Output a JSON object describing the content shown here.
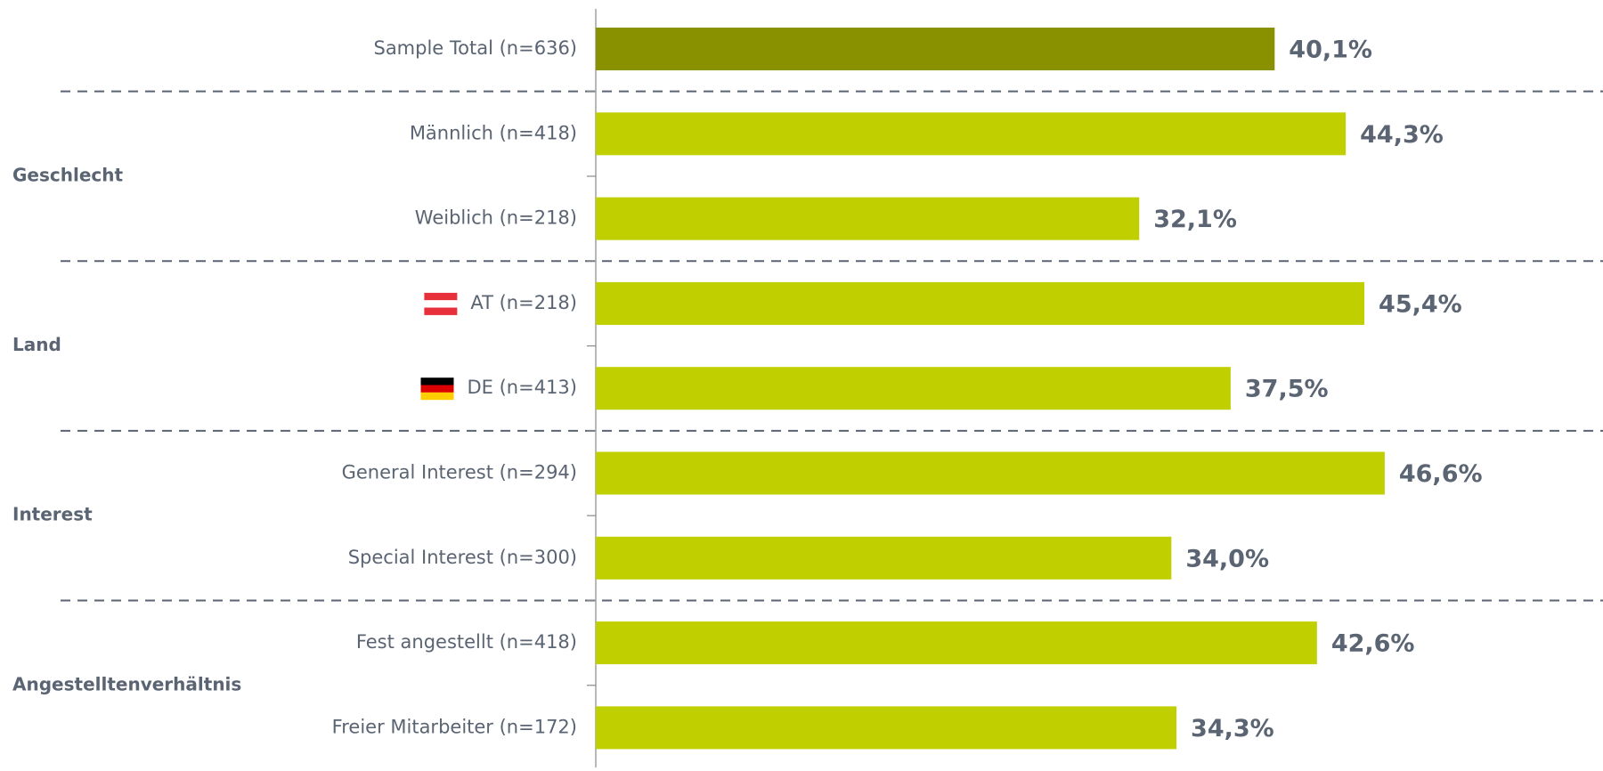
{
  "chart_data": {
    "type": "bar",
    "groups": [
      {
        "name": null,
        "color": "#8a9100",
        "categories": [
          "Sample Total (n=636)"
        ],
        "values": [
          40.1
        ],
        "value_labels": [
          "40,1%"
        ]
      },
      {
        "name": "Geschlecht",
        "color": "#bfcf00",
        "categories": [
          "Männlich (n=418)",
          "Weiblich (n=218)"
        ],
        "values": [
          44.3,
          32.1
        ],
        "value_labels": [
          "44,3%",
          "32,1%"
        ]
      },
      {
        "name": "Land",
        "color": "#bfcf00",
        "categories": [
          "AT (n=218)",
          "DE (n=413)"
        ],
        "values": [
          45.4,
          37.5
        ],
        "value_labels": [
          "45,4%",
          "37,5%"
        ]
      },
      {
        "name": "Interest",
        "color": "#bfcf00",
        "categories": [
          "General Interest (n=294)",
          "Special Interest (n=300)"
        ],
        "values": [
          46.6,
          34.0
        ],
        "value_labels": [
          "46,6%",
          "34,0%"
        ]
      },
      {
        "name": "Angestelltenverhältnis",
        "color": "#bfcf00",
        "categories": [
          "Fest angestellt (n=418)",
          "Freier Mitarbeiter (n=172)"
        ],
        "values": [
          42.6,
          34.3
        ],
        "value_labels": [
          "42,6%",
          "34,3%"
        ]
      }
    ]
  }
}
